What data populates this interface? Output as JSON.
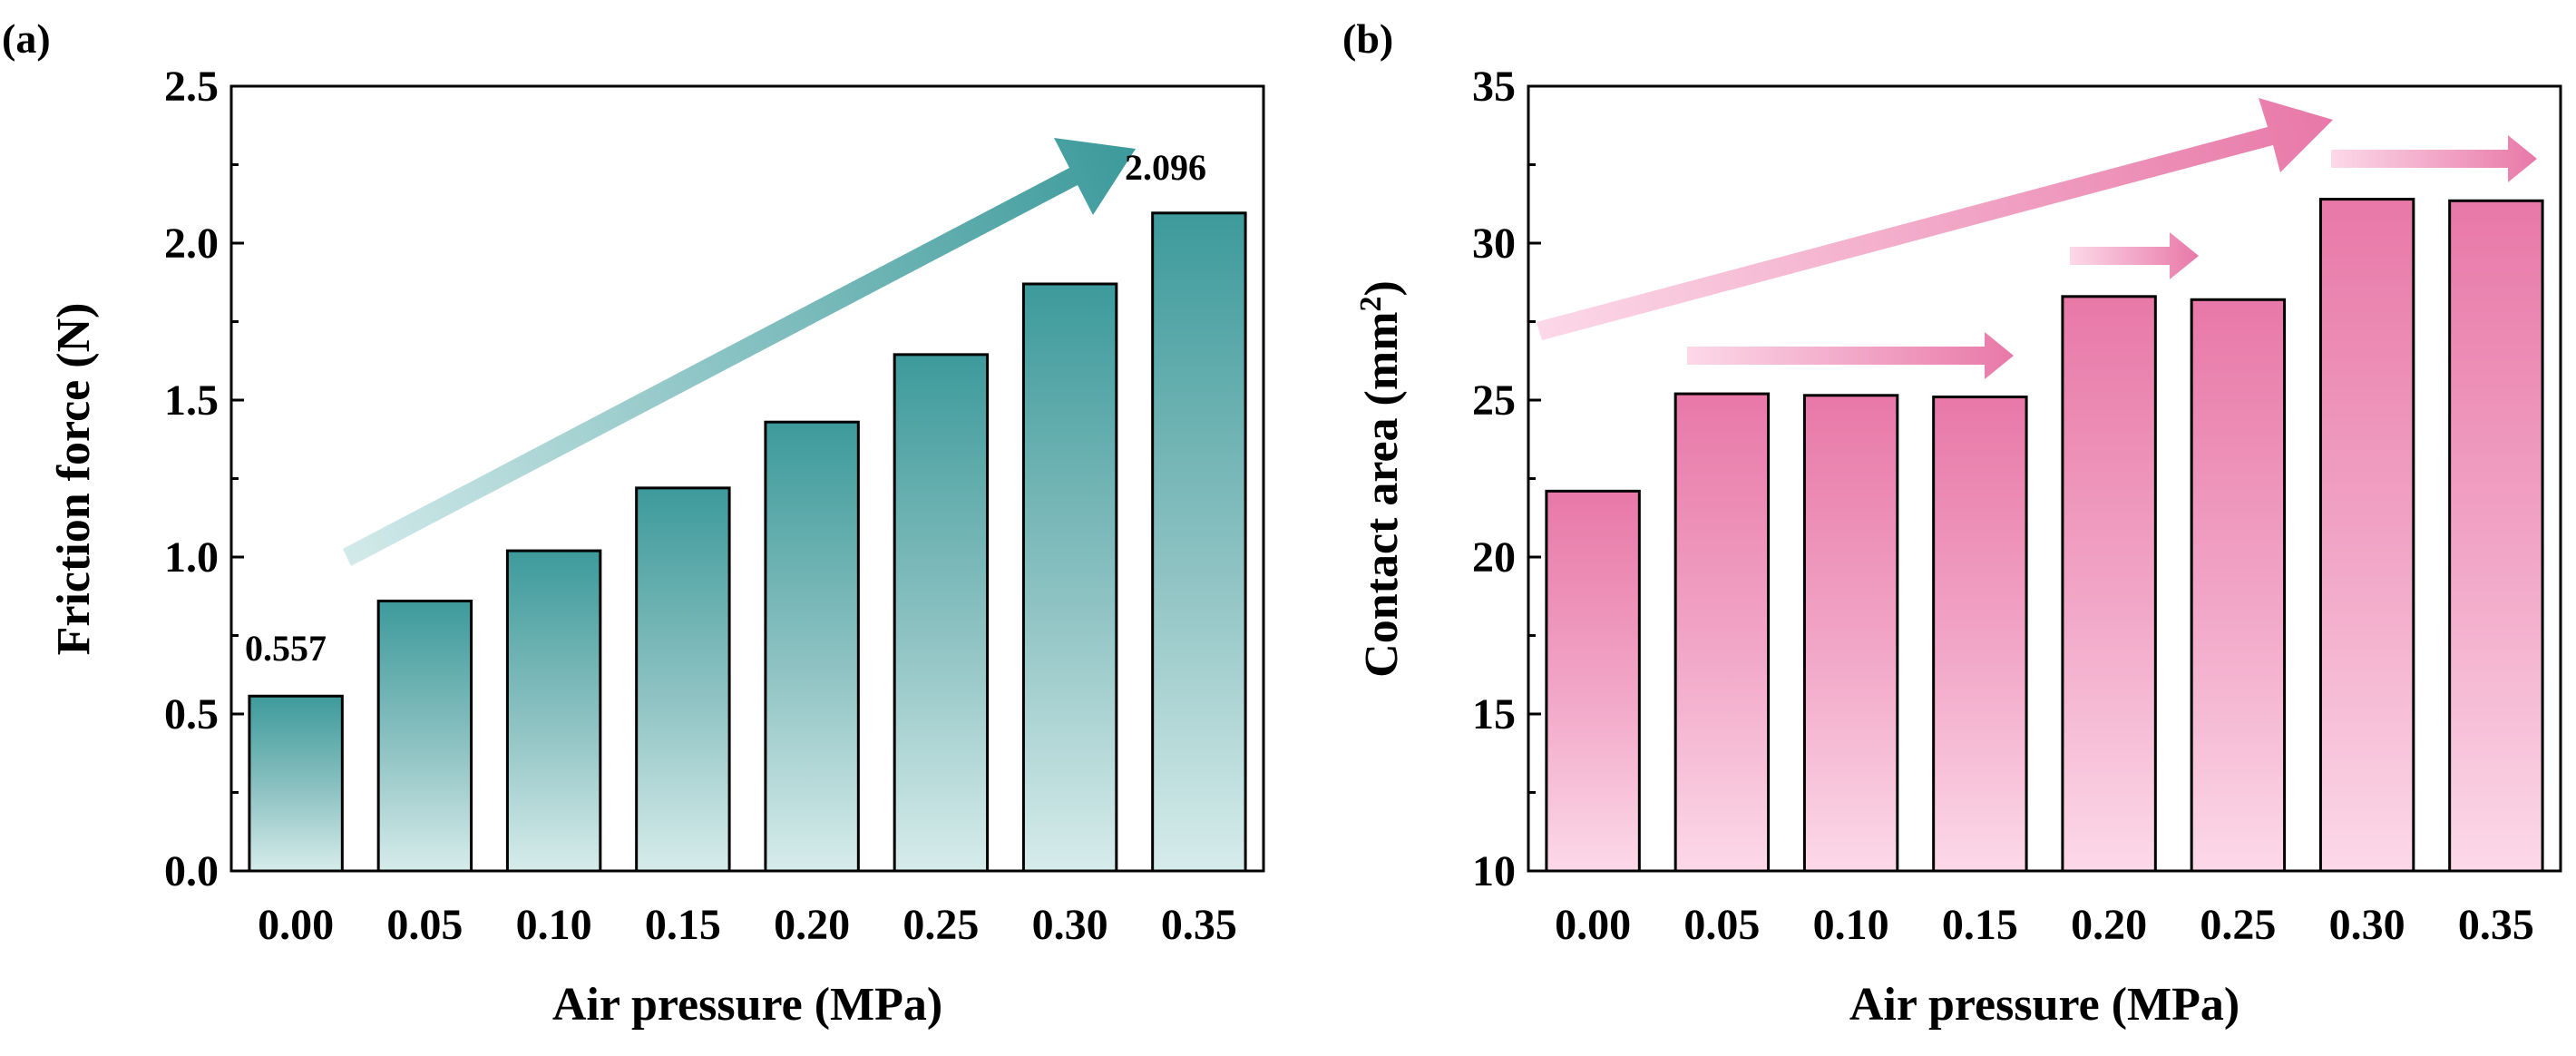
{
  "chart_data": [
    {
      "panel": "(a)",
      "type": "bar",
      "categories": [
        "0.00",
        "0.05",
        "0.10",
        "0.15",
        "0.20",
        "0.25",
        "0.30",
        "0.35"
      ],
      "values": [
        0.557,
        0.86,
        1.02,
        1.22,
        1.43,
        1.645,
        1.87,
        2.096
      ],
      "xlabel": "Air pressure (MPa)",
      "ylabel": "Friction force (N)",
      "ylim": [
        0,
        2.5
      ],
      "yticks": [
        "0.0",
        "0.5",
        "1.0",
        "1.5",
        "2.0",
        "2.5"
      ],
      "annotations": [
        {
          "text": "0.557",
          "category": "0.00"
        },
        {
          "text": "2.096",
          "category": "0.35"
        }
      ],
      "color": "#47a0a0",
      "grid": false
    },
    {
      "panel": "(b)",
      "type": "bar",
      "categories": [
        "0.00",
        "0.05",
        "0.10",
        "0.15",
        "0.20",
        "0.25",
        "0.30",
        "0.35"
      ],
      "values": [
        22.1,
        25.2,
        25.15,
        25.1,
        28.3,
        28.2,
        31.4,
        31.35
      ],
      "xlabel": "Air pressure (MPa)",
      "ylabel": "Contact area (mm",
      "ylabel_superscript": "2",
      "ylabel_suffix": ")",
      "ylim": [
        10,
        35
      ],
      "yticks": [
        "10",
        "15",
        "20",
        "25",
        "30",
        "35"
      ],
      "color": "#e878a8",
      "grid": false
    }
  ]
}
